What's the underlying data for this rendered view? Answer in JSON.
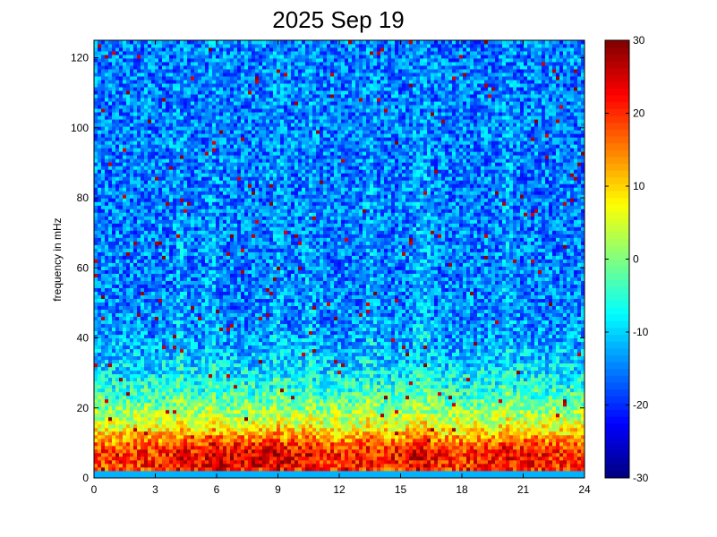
{
  "chart_data": {
    "type": "heatmap",
    "title": "2025 Sep 19",
    "xlabel": "",
    "ylabel": "frequency in mHz",
    "xlim": [
      0,
      24
    ],
    "ylim": [
      0,
      125
    ],
    "xticks": [
      0,
      3,
      6,
      9,
      12,
      15,
      18,
      21,
      24
    ],
    "yticks": [
      0,
      20,
      40,
      60,
      80,
      100,
      120
    ],
    "colorbar": {
      "range": [
        -30,
        30
      ],
      "ticks": [
        -30,
        -20,
        -10,
        0,
        10,
        20,
        30
      ],
      "colormap": "jet"
    },
    "grid": false,
    "description_of_values": {
      "background_level_high_freq": -15,
      "low_freq_band_0_20mHz": 15,
      "peak_band_3_10mHz_hours_4_11": 28
    }
  }
}
